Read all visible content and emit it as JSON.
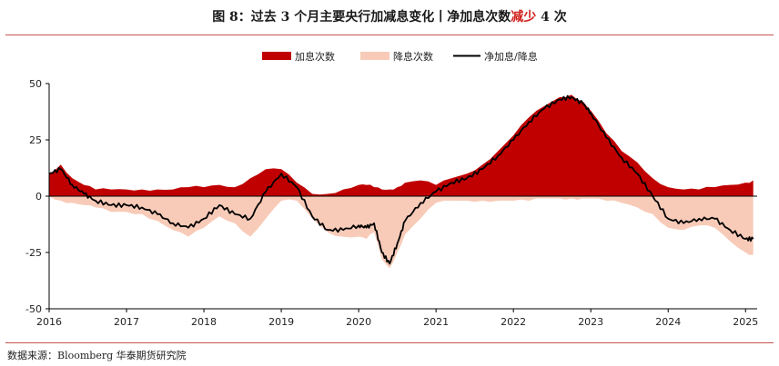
{
  "figure": {
    "title_prefix": "图 8：过去 3 个月主要央行加减息变化丨净加息次数",
    "title_highlight": "减少",
    "title_suffix": " 4 次",
    "source": "数据来源：Bloomberg  华泰期货研究院"
  },
  "colors": {
    "hike": "#c00000",
    "cut": "#f8cbb8",
    "net": "#000000",
    "title_highlight": "#d0201c",
    "rule": "#c8554c"
  },
  "chart_data": {
    "type": "area",
    "title": "",
    "xlabel": "",
    "ylabel": "",
    "ylim": [
      -50,
      50
    ],
    "xlim": [
      2016.0,
      2025.15
    ],
    "y_ticks": [
      "50",
      "25",
      "0",
      "-25",
      "-50"
    ],
    "x_ticks": [
      "2016",
      "2017",
      "2018",
      "2019",
      "2020",
      "2021",
      "2022",
      "2023",
      "2024",
      "2025"
    ],
    "legend_position": "top-center",
    "grid": false,
    "x": [
      2016.0,
      2016.15,
      2016.3,
      2016.45,
      2016.6,
      2016.8,
      2017.0,
      2017.2,
      2017.4,
      2017.6,
      2017.8,
      2018.0,
      2018.2,
      2018.4,
      2018.6,
      2018.8,
      2019.0,
      2019.2,
      2019.4,
      2019.6,
      2019.8,
      2020.0,
      2020.1,
      2020.2,
      2020.3,
      2020.4,
      2020.5,
      2020.6,
      2020.8,
      2021.0,
      2021.2,
      2021.4,
      2021.6,
      2021.8,
      2022.0,
      2022.2,
      2022.4,
      2022.6,
      2022.75,
      2022.9,
      2023.0,
      2023.2,
      2023.4,
      2023.6,
      2023.8,
      2024.0,
      2024.2,
      2024.4,
      2024.6,
      2024.8,
      2025.0,
      2025.1
    ],
    "series": [
      {
        "name": "加息次数",
        "values": [
          10,
          14,
          8,
          5,
          3,
          3,
          3,
          3,
          3,
          3,
          4,
          4,
          5,
          4,
          8,
          12,
          12,
          6,
          1,
          1,
          3,
          5,
          5,
          4,
          3,
          3,
          4,
          6,
          7,
          5,
          8,
          10,
          14,
          20,
          27,
          35,
          40,
          44,
          45,
          42,
          38,
          28,
          20,
          15,
          8,
          4,
          3,
          3,
          4,
          5,
          6,
          7
        ]
      },
      {
        "name": "降息次数",
        "values": [
          0,
          -2,
          -3,
          -4,
          -5,
          -7,
          -7,
          -8,
          -11,
          -15,
          -18,
          -14,
          -9,
          -12,
          -18,
          -10,
          -2,
          -2,
          -10,
          -16,
          -18,
          -18,
          -19,
          -16,
          -28,
          -32,
          -25,
          -17,
          -10,
          -3,
          -2,
          -2,
          -2,
          -2,
          -2,
          -2,
          -1,
          -1,
          -1,
          -1,
          -1,
          -2,
          -3,
          -5,
          -8,
          -14,
          -15,
          -13,
          -14,
          -20,
          -25,
          -26
        ]
      },
      {
        "name": "净加息/降息",
        "values": [
          10,
          12,
          5,
          1,
          -2,
          -4,
          -4,
          -5,
          -8,
          -12,
          -14,
          -10,
          -4,
          -8,
          -10,
          2,
          10,
          4,
          -9,
          -15,
          -15,
          -13,
          -14,
          -12,
          -25,
          -30,
          -21,
          -11,
          -3,
          2,
          6,
          8,
          12,
          18,
          25,
          33,
          39,
          43,
          44,
          41,
          37,
          26,
          17,
          10,
          0,
          -10,
          -12,
          -10,
          -10,
          -15,
          -19,
          -19
        ]
      }
    ]
  }
}
